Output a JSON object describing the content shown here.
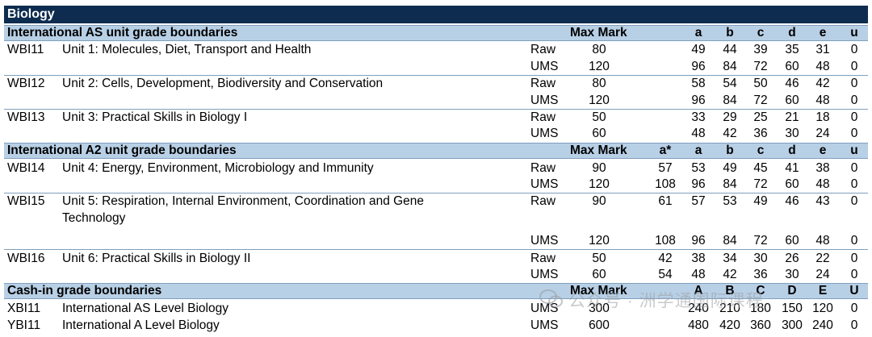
{
  "title": "Biology",
  "sections": [
    {
      "heading": "International AS unit grade boundaries",
      "cols": {
        "max_mark": "Max Mark",
        "a": "a",
        "b": "b",
        "c": "c",
        "d": "d",
        "e": "e",
        "u": "u"
      },
      "units": [
        {
          "code": "WBI11",
          "name": "Unit 1: Molecules, Diet, Transport and Health",
          "rows": [
            {
              "type": "Raw",
              "max": "80",
              "grades": [
                "49",
                "44",
                "39",
                "35",
                "31",
                "0"
              ]
            },
            {
              "type": "UMS",
              "max": "120",
              "grades": [
                "96",
                "84",
                "72",
                "60",
                "48",
                "0"
              ]
            }
          ]
        },
        {
          "code": "WBI12",
          "name": "Unit 2: Cells, Development, Biodiversity and Conservation",
          "rows": [
            {
              "type": "Raw",
              "max": "80",
              "grades": [
                "58",
                "54",
                "50",
                "46",
                "42",
                "0"
              ]
            },
            {
              "type": "UMS",
              "max": "120",
              "grades": [
                "96",
                "84",
                "72",
                "60",
                "48",
                "0"
              ]
            }
          ]
        },
        {
          "code": "WBI13",
          "name": "Unit 3: Practical Skills in Biology I",
          "rows": [
            {
              "type": "Raw",
              "max": "50",
              "grades": [
                "33",
                "29",
                "25",
                "21",
                "18",
                "0"
              ]
            },
            {
              "type": "UMS",
              "max": "60",
              "grades": [
                "48",
                "42",
                "36",
                "30",
                "24",
                "0"
              ]
            }
          ]
        }
      ]
    },
    {
      "heading": "International A2 unit grade boundaries",
      "cols": {
        "max_mark": "Max Mark",
        "astar": "a*",
        "a": "a",
        "b": "b",
        "c": "c",
        "d": "d",
        "e": "e",
        "u": "u"
      },
      "units": [
        {
          "code": "WBI14",
          "name": "Unit 4: Energy, Environment, Microbiology and Immunity",
          "rows": [
            {
              "type": "Raw",
              "max": "90",
              "astar": "57",
              "grades": [
                "53",
                "49",
                "45",
                "41",
                "38",
                "0"
              ]
            },
            {
              "type": "UMS",
              "max": "120",
              "astar": "108",
              "grades": [
                "96",
                "84",
                "72",
                "60",
                "48",
                "0"
              ]
            }
          ]
        },
        {
          "code": "WBI15",
          "name_line1": "Unit 5: Respiration, Internal Environment, Coordination and Gene",
          "name_line2": "Technology",
          "rows": [
            {
              "type": "Raw",
              "max": "90",
              "astar": "61",
              "grades": [
                "57",
                "53",
                "49",
                "46",
                "43",
                "0"
              ]
            },
            {
              "type": "UMS",
              "max": "120",
              "astar": "108",
              "grades": [
                "96",
                "84",
                "72",
                "60",
                "48",
                "0"
              ]
            }
          ]
        },
        {
          "code": "WBI16",
          "name": "Unit 6: Practical Skills in Biology II",
          "rows": [
            {
              "type": "Raw",
              "max": "50",
              "astar": "42",
              "grades": [
                "38",
                "34",
                "30",
                "26",
                "22",
                "0"
              ]
            },
            {
              "type": "UMS",
              "max": "60",
              "astar": "54",
              "grades": [
                "48",
                "42",
                "36",
                "30",
                "24",
                "0"
              ]
            }
          ]
        }
      ]
    },
    {
      "heading": "Cash-in grade boundaries",
      "cols": {
        "max_mark": "Max Mark",
        "a": "A",
        "b": "B",
        "c": "C",
        "d": "D",
        "e": "E",
        "u": "U"
      },
      "quals": [
        {
          "code": "XBI11",
          "name": "International AS Level Biology",
          "type": "UMS",
          "max": "300",
          "grades": [
            "240",
            "210",
            "180",
            "150",
            "120",
            "0"
          ]
        },
        {
          "code": "YBI11",
          "name": "International A Level Biology",
          "type": "UMS",
          "max": "600",
          "grades": [
            "480",
            "420",
            "360",
            "300",
            "240",
            "0"
          ]
        }
      ]
    }
  ],
  "watermark": "公众号 · 洲学通国际课程",
  "colors": {
    "title_band": "#0d2c4f",
    "section_band": "#b8d0e6",
    "rule": "#7f9fbd"
  }
}
